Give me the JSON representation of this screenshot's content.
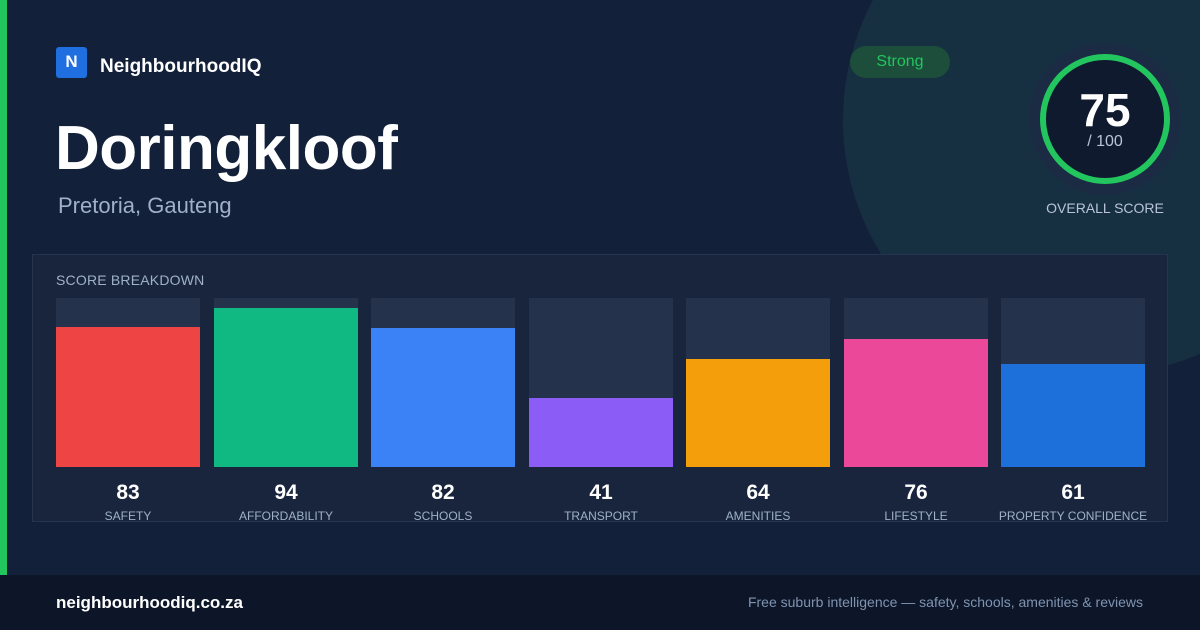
{
  "brand": {
    "logo_letter": "N",
    "name": "NeighbourhoodIQ"
  },
  "suburb": {
    "name": "Doringkloof",
    "location": "Pretoria, Gauteng"
  },
  "rating": {
    "label": "Strong",
    "color": "#22c55e"
  },
  "overall_score": {
    "value": "75",
    "max_label": "/ 100",
    "fraction": 0.75,
    "caption": "OVERALL SCORE"
  },
  "breakdown": {
    "title": "SCORE BREAKDOWN"
  },
  "chart_data": {
    "type": "bar",
    "categories": [
      "SAFETY",
      "AFFORDABILITY",
      "SCHOOLS",
      "TRANSPORT",
      "AMENITIES",
      "LIFESTYLE",
      "PROPERTY CONFIDENCE"
    ],
    "values": [
      83,
      94,
      82,
      41,
      64,
      76,
      61
    ],
    "colors": [
      "#ef4444",
      "#10b981",
      "#3b82f6",
      "#8b5cf6",
      "#f59e0b",
      "#ec4899",
      "#1d6fd9"
    ],
    "ylim": [
      0,
      100
    ]
  },
  "footer": {
    "url": "neighbourhoodiq.co.za",
    "tagline": "Free suburb intelligence — safety, schools, amenities & reviews"
  },
  "colors": {
    "background": "#132039",
    "accent": "#22c55e",
    "panel": "#18253d"
  }
}
